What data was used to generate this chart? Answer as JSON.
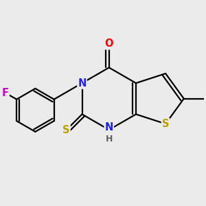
{
  "bg_color": "#ebebeb",
  "bond_color": "#000000",
  "bond_width": 1.6,
  "atom_colors": {
    "N": "#2020ff",
    "O": "#ff0000",
    "S_thio": "#b8a000",
    "S_ring": "#b8a000",
    "F": "#cc00cc",
    "C": "#000000",
    "H": "#606060"
  },
  "font_size": 10.5
}
